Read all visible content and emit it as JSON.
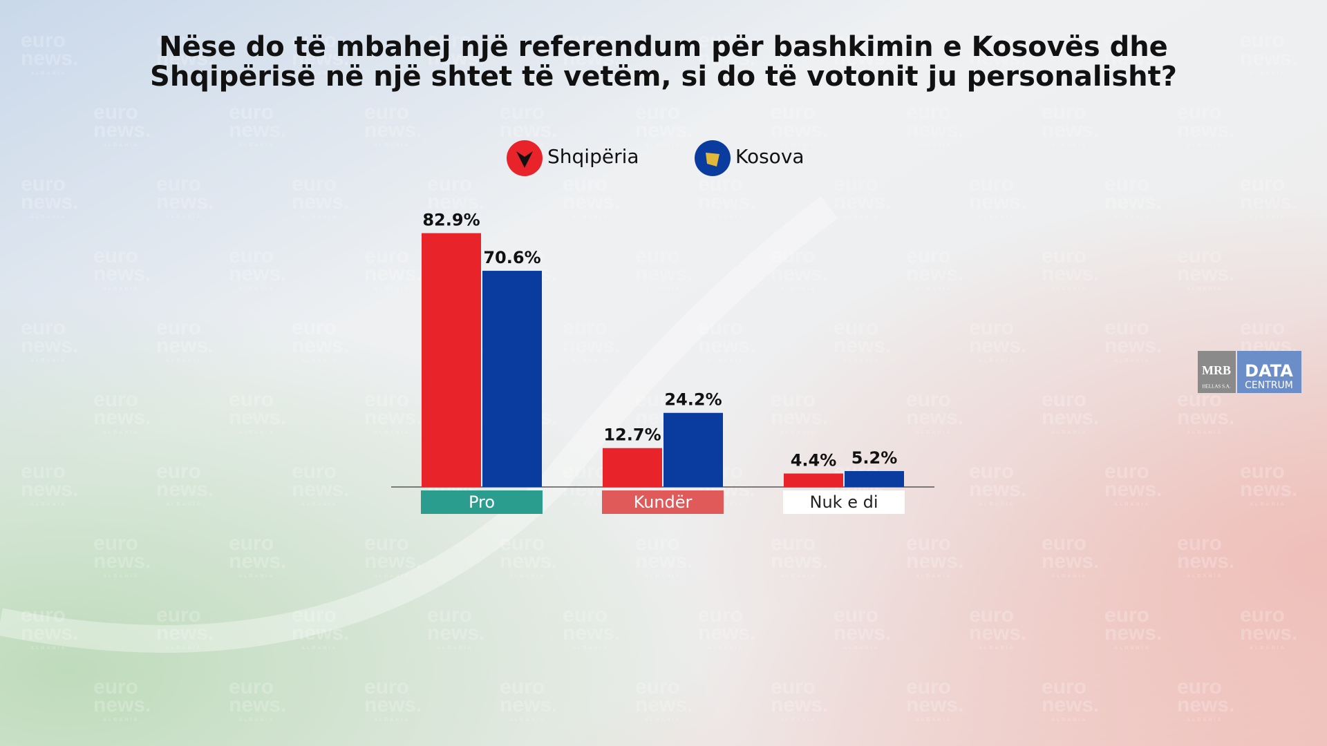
{
  "chart_data": {
    "type": "bar",
    "title": [
      "Nëse do të mbahej një referendum për bashkimin e Kosovës dhe",
      "Shqipërisë në një shtet të vetëm, si do të votonit ju personalisht?"
    ],
    "categories": [
      "Pro",
      "Kundër",
      "Nuk e di"
    ],
    "category_colors": [
      "#2a9d8f",
      "#e05a5a",
      "#ffffff"
    ],
    "series": [
      {
        "name": "Shqipëria",
        "color": "#e8242a",
        "values": [
          82.9,
          12.7,
          4.4
        ],
        "value_labels": [
          "82.9%",
          "12.7%",
          "4.4%"
        ]
      },
      {
        "name": "Kosova",
        "color": "#0a3ca0",
        "values": [
          70.6,
          24.2,
          5.2
        ],
        "value_labels": [
          "70.6%",
          "24.2%",
          "5.2%"
        ]
      }
    ]
  },
  "watermark": [
    "euro",
    "news.",
    "ALBANIA"
  ],
  "logo": {
    "left": "MRB",
    "left_sub": "HELLAS S.A.",
    "right": "DATA",
    "right_sub": "CENTRUM"
  }
}
